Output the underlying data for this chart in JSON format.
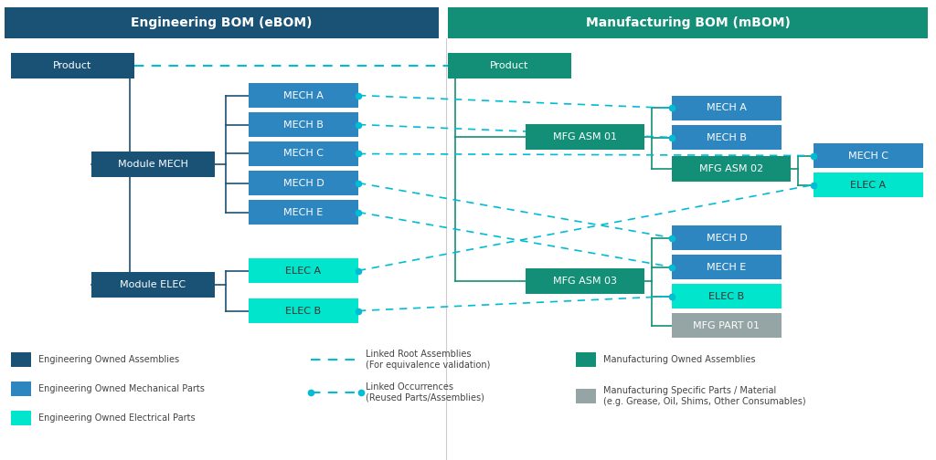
{
  "fig_width": 10.24,
  "fig_height": 5.04,
  "bg_color": "#ffffff",
  "header_ebom_color": "#1a5276",
  "header_mbom_color": "#148f77",
  "header_text_color": "#ffffff",
  "header_ebom_label": "Engineering BOM (eBOM)",
  "header_mbom_label": "Manufacturing BOM (mBOM)",
  "color_eng_assembly": "#1a5276",
  "color_eng_mech": "#2e86c1",
  "color_eng_elec": "#00e5cc",
  "color_mfg_assembly": "#148f77",
  "color_mfg_part": "#95a5a6",
  "color_connector": "#1a5276",
  "color_dashed": "#00bcd4",
  "legend_items": [
    {
      "color": "#1a5276",
      "label": "Engineering Owned Assemblies"
    },
    {
      "color": "#2e86c1",
      "label": "Engineering Owned Mechanical Parts"
    },
    {
      "color": "#00e5cc",
      "label": "Engineering Owned Electrical Parts"
    }
  ],
  "legend_items_right": [
    {
      "color": "#148f77",
      "label": "Manufacturing Owned Assemblies"
    },
    {
      "color": "#95a5a6",
      "label": "Manufacturing Specific Parts / Material\n(e.g. Grease, Oil, Shims, Other Consumables)"
    }
  ]
}
